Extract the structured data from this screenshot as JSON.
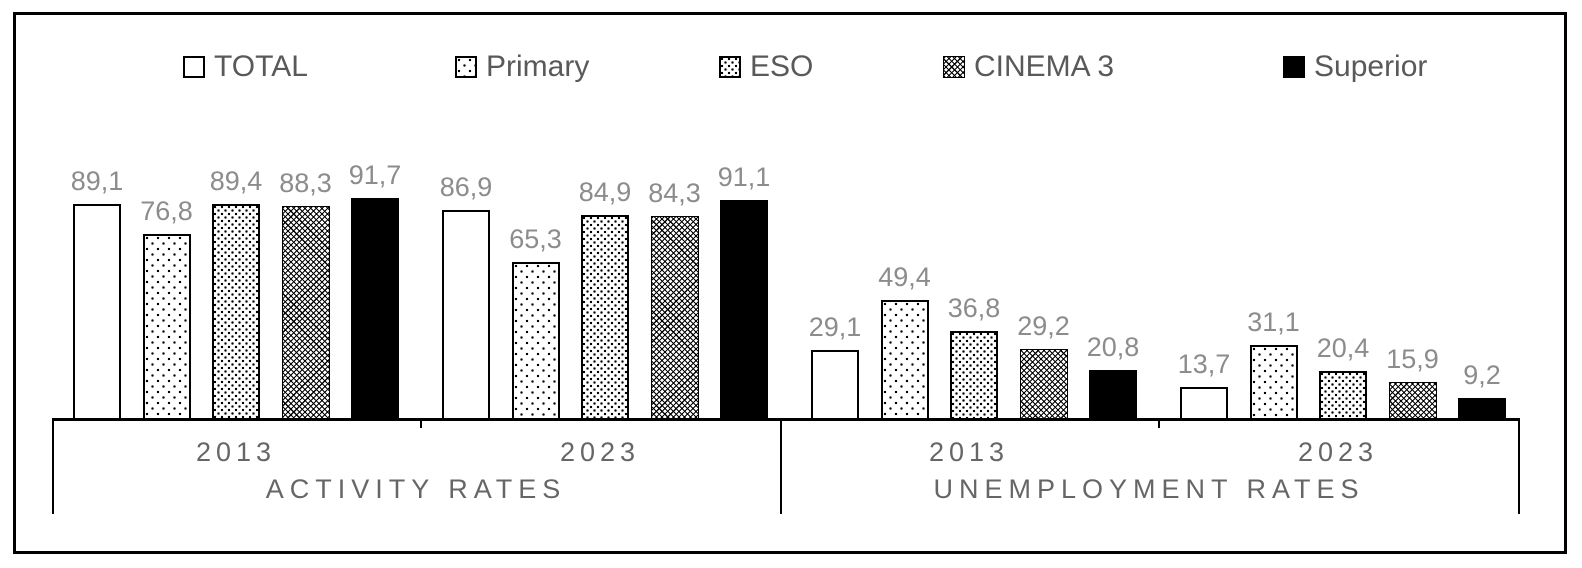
{
  "chart_data": {
    "type": "bar",
    "title": "",
    "value_format": "decimal-comma",
    "ylim": [
      0,
      100
    ],
    "grid": false,
    "y_axis_visible": false,
    "legend": {
      "position": "top",
      "entries": [
        {
          "label": "TOTAL",
          "pattern": "white-outline"
        },
        {
          "label": "Primary",
          "pattern": "dots-sparse"
        },
        {
          "label": "ESO",
          "pattern": "dots-dense"
        },
        {
          "label": "CINEMA 3",
          "pattern": "crosshatch-weave"
        },
        {
          "label": "Superior",
          "pattern": "solid-black"
        }
      ]
    },
    "series_names": [
      "TOTAL",
      "Primary",
      "ESO",
      "CINEMA 3",
      "Superior"
    ],
    "sections": [
      {
        "label": "ACTIVITY RATES",
        "years": [
          {
            "label": "2013",
            "values": [
              89.1,
              76.8,
              89.4,
              88.3,
              91.7
            ],
            "display": [
              "89,1",
              "76,8",
              "89,4",
              "88,3",
              "91,7"
            ]
          },
          {
            "label": "2023",
            "values": [
              86.9,
              65.3,
              84.9,
              84.3,
              91.1
            ],
            "display": [
              "86,9",
              "65,3",
              "84,9",
              "84,3",
              "91,1"
            ]
          }
        ]
      },
      {
        "label": "UNEMPLOYMENT RATES",
        "years": [
          {
            "label": "2013",
            "values": [
              29.1,
              49.4,
              36.8,
              29.2,
              20.8
            ],
            "display": [
              "29,1",
              "49,4",
              "36,8",
              "29,2",
              "20,8"
            ]
          },
          {
            "label": "2023",
            "values": [
              13.7,
              31.1,
              20.4,
              15.9,
              9.2
            ],
            "display": [
              "13,7",
              "31,1",
              "20,4",
              "15,9",
              "9,2"
            ]
          }
        ]
      }
    ],
    "colors": {
      "bar_outline": "#000000",
      "superior_fill": "#000000",
      "value_label_text": "#8c8c8c",
      "axis_text": "#666666",
      "legend_text": "#595959",
      "axis_line": "#000000",
      "frame": "#000000",
      "background": "#ffffff"
    }
  }
}
